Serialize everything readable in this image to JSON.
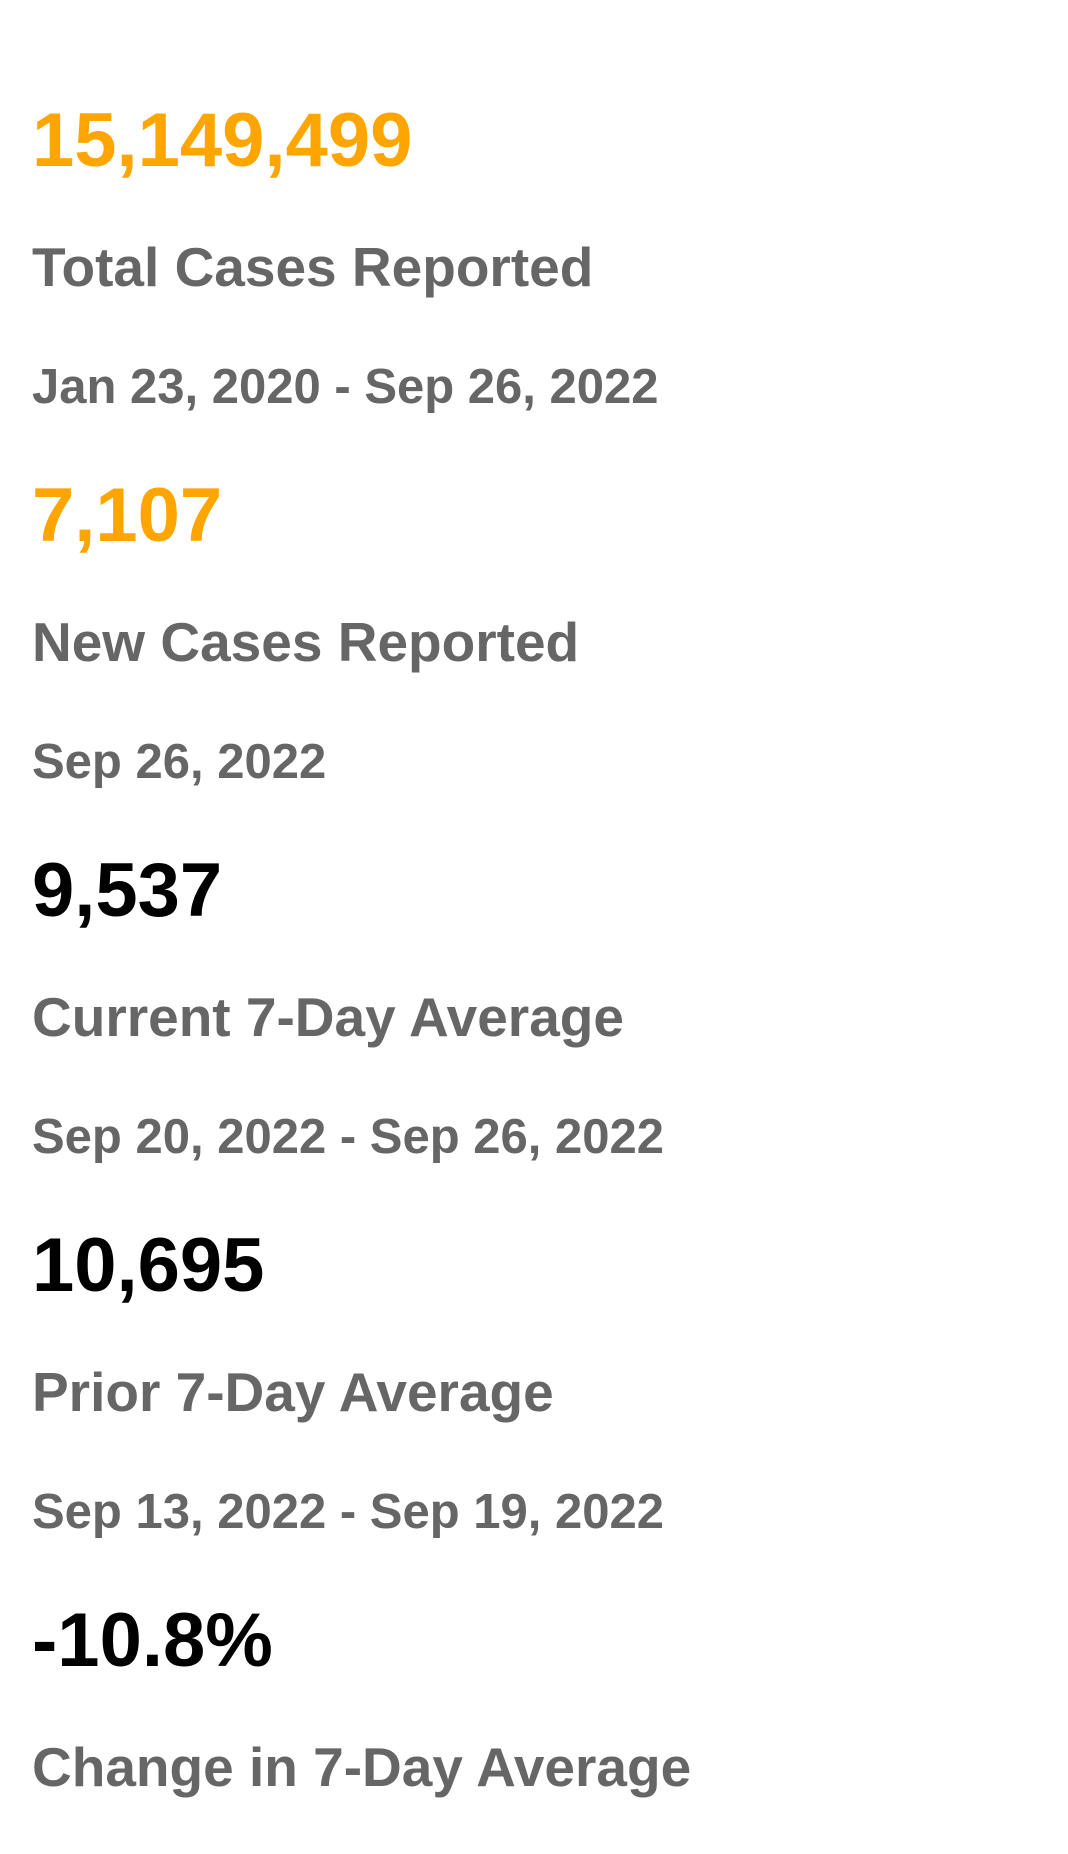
{
  "colors": {
    "accent": "#ffa500",
    "value_dark": "#000000",
    "label_gray": "#666666"
  },
  "stats": {
    "total_cases": {
      "value": "15,149,499",
      "label": "Total Cases Reported",
      "date_range": "Jan 23, 2020 - Sep 26, 2022"
    },
    "new_cases": {
      "value": "7,107",
      "label": "New Cases Reported",
      "date": "Sep 26, 2022"
    },
    "current_avg": {
      "value": "9,537",
      "label": "Current 7-Day Average",
      "date_range": "Sep 20, 2022 - Sep 26, 2022"
    },
    "prior_avg": {
      "value": "10,695",
      "label": "Prior 7-Day Average",
      "date_range": "Sep 13, 2022 - Sep 19, 2022"
    },
    "change": {
      "value": "-10.8%",
      "label": "Change in 7-Day Average"
    }
  }
}
